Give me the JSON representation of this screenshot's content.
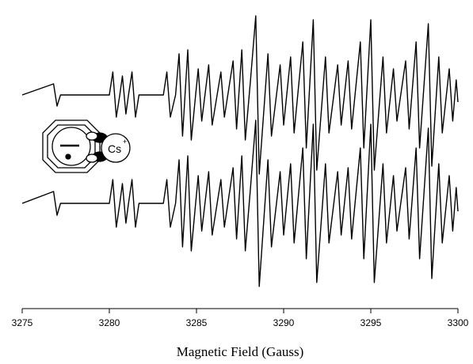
{
  "chart_data": {
    "type": "line",
    "xlabel": "Magnetic Field (Gauss)",
    "xlim": [
      3275,
      3300
    ],
    "xticks": [
      3275,
      3280,
      3285,
      3290,
      3295,
      3300
    ],
    "ylim": [
      -1.33,
      2.57
    ],
    "annotation": {
      "text": "Cs",
      "superscript": "+"
    },
    "x": [
      3275,
      3276.8,
      3277.0,
      3277.2,
      3280.0,
      3280.2,
      3280.4,
      3280.6,
      3280.75,
      3280.95,
      3281.1,
      3281.3,
      3281.5,
      3281.7,
      3283.1,
      3283.3,
      3283.5,
      3283.8,
      3284.0,
      3284.2,
      3284.5,
      3284.7,
      3284.95,
      3285.1,
      3285.3,
      3285.7,
      3285.9,
      3286.4,
      3286.6,
      3287.1,
      3287.3,
      3287.6,
      3287.8,
      3288.1,
      3288.4,
      3288.6,
      3289.1,
      3289.3,
      3289.8,
      3290.0,
      3290.4,
      3290.6,
      3291.1,
      3291.3,
      3291.7,
      3291.9,
      3292.4,
      3292.6,
      3293.1,
      3293.3,
      3293.7,
      3293.9,
      3294.4,
      3294.6,
      3295.0,
      3295.2,
      3295.7,
      3295.9,
      3296.3,
      3296.5,
      3297.0,
      3297.2,
      3297.6,
      3297.8,
      3298.3,
      3298.5,
      3298.9,
      3299.1,
      3299.5,
      3299.7,
      3299.9,
      3300.0
    ],
    "series": [
      {
        "color": "#000000",
        "values": [
          1.37,
          1.51,
          1.23,
          1.37,
          1.37,
          1.66,
          1.09,
          1.37,
          1.61,
          1.13,
          1.37,
          1.66,
          1.09,
          1.37,
          1.37,
          1.66,
          1.09,
          1.37,
          1.89,
          0.85,
          1.94,
          0.8,
          1.37,
          1.7,
          1.04,
          1.75,
          0.99,
          1.66,
          1.09,
          1.8,
          0.94,
          1.94,
          0.8,
          1.56,
          2.37,
          0.37,
          1.89,
          0.85,
          1.75,
          0.99,
          1.85,
          0.89,
          2.04,
          0.7,
          2.32,
          0.42,
          1.85,
          0.89,
          1.75,
          0.99,
          1.8,
          0.94,
          2.04,
          0.7,
          2.32,
          0.42,
          1.85,
          0.89,
          1.7,
          1.04,
          1.8,
          0.94,
          2.04,
          0.7,
          2.27,
          0.47,
          1.85,
          0.89,
          1.7,
          1.04,
          1.56,
          1.28
        ]
      },
      {
        "color": "#000000",
        "values": [
          0,
          0.15,
          -0.15,
          0,
          0,
          0.3,
          -0.3,
          0,
          0.25,
          -0.25,
          0,
          0.3,
          -0.3,
          0,
          0,
          0.3,
          -0.3,
          0,
          0.55,
          -0.55,
          0.6,
          -0.6,
          0,
          0.35,
          -0.35,
          0.4,
          -0.4,
          0.3,
          -0.3,
          0.45,
          -0.45,
          0.6,
          -0.6,
          0.2,
          1.05,
          -1.05,
          0.55,
          -0.55,
          0.4,
          -0.4,
          0.5,
          -0.5,
          0.7,
          -0.7,
          1.0,
          -1.0,
          0.5,
          -0.5,
          0.4,
          -0.4,
          0.45,
          -0.45,
          0.7,
          -0.7,
          1.0,
          -1.0,
          0.5,
          -0.5,
          0.35,
          -0.35,
          0.45,
          -0.45,
          0.7,
          -0.7,
          0.95,
          -0.95,
          0.5,
          -0.5,
          0.35,
          -0.35,
          0.2,
          -0.1
        ]
      }
    ]
  }
}
